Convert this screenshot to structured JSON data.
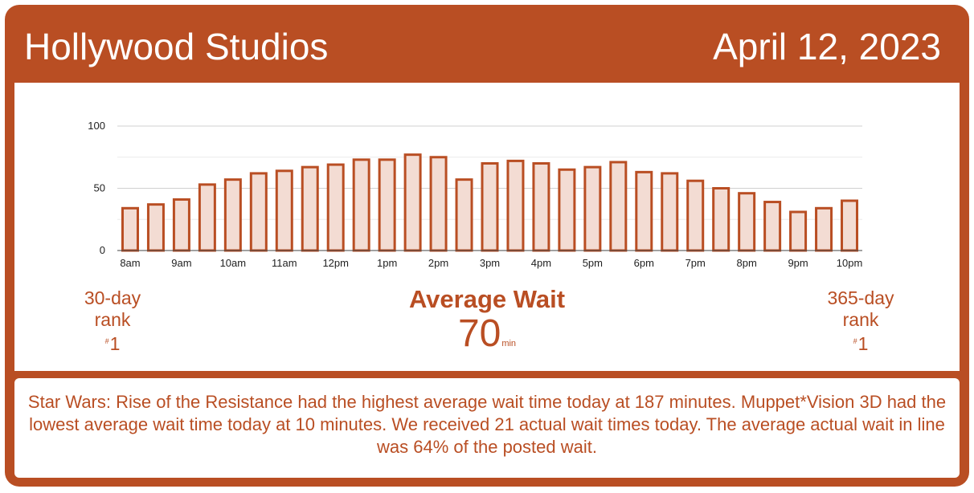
{
  "header": {
    "park": "Hollywood Studios",
    "date": "April 12, 2023"
  },
  "colors": {
    "brand": "#b94e23",
    "bar_fill": "#f3dcd3",
    "panel": "#ffffff"
  },
  "chart_data": {
    "type": "bar",
    "title": "",
    "xlabel": "",
    "ylabel": "",
    "ylim": [
      0,
      100
    ],
    "yticks": [
      0,
      50,
      100
    ],
    "grid": true,
    "x_tick_labels": [
      "8am",
      "9am",
      "10am",
      "11am",
      "12pm",
      "1pm",
      "2pm",
      "3pm",
      "4pm",
      "5pm",
      "6pm",
      "7pm",
      "8pm",
      "9pm",
      "10pm"
    ],
    "categories": [
      "8:00",
      "8:30",
      "9:00",
      "9:30",
      "10:00",
      "10:30",
      "11:00",
      "11:30",
      "12:00",
      "12:30",
      "13:00",
      "13:30",
      "14:00",
      "14:30",
      "15:00",
      "15:30",
      "16:00",
      "16:30",
      "17:00",
      "17:30",
      "18:00",
      "18:30",
      "19:00",
      "19:30",
      "20:00",
      "20:30",
      "21:00",
      "21:30",
      "22:00"
    ],
    "values": [
      34,
      37,
      41,
      53,
      57,
      62,
      64,
      67,
      69,
      73,
      73,
      77,
      75,
      57,
      70,
      72,
      70,
      65,
      67,
      71,
      63,
      62,
      56,
      50,
      46,
      39,
      31,
      34,
      40
    ]
  },
  "stats": {
    "rank30": {
      "label_line1": "30-day",
      "label_line2": "rank",
      "hash": "#",
      "value": "1"
    },
    "rank365": {
      "label_line1": "365-day",
      "label_line2": "rank",
      "hash": "#",
      "value": "1"
    },
    "average": {
      "title": "Average Wait",
      "value": "70",
      "unit": "min"
    }
  },
  "summary": "Star Wars: Rise of the Resistance had the highest average wait time today at 187 minutes. Muppet*Vision 3D had the lowest average wait time today at 10 minutes. We received 21 actual wait times today. The average actual wait in line was 64% of the posted wait."
}
